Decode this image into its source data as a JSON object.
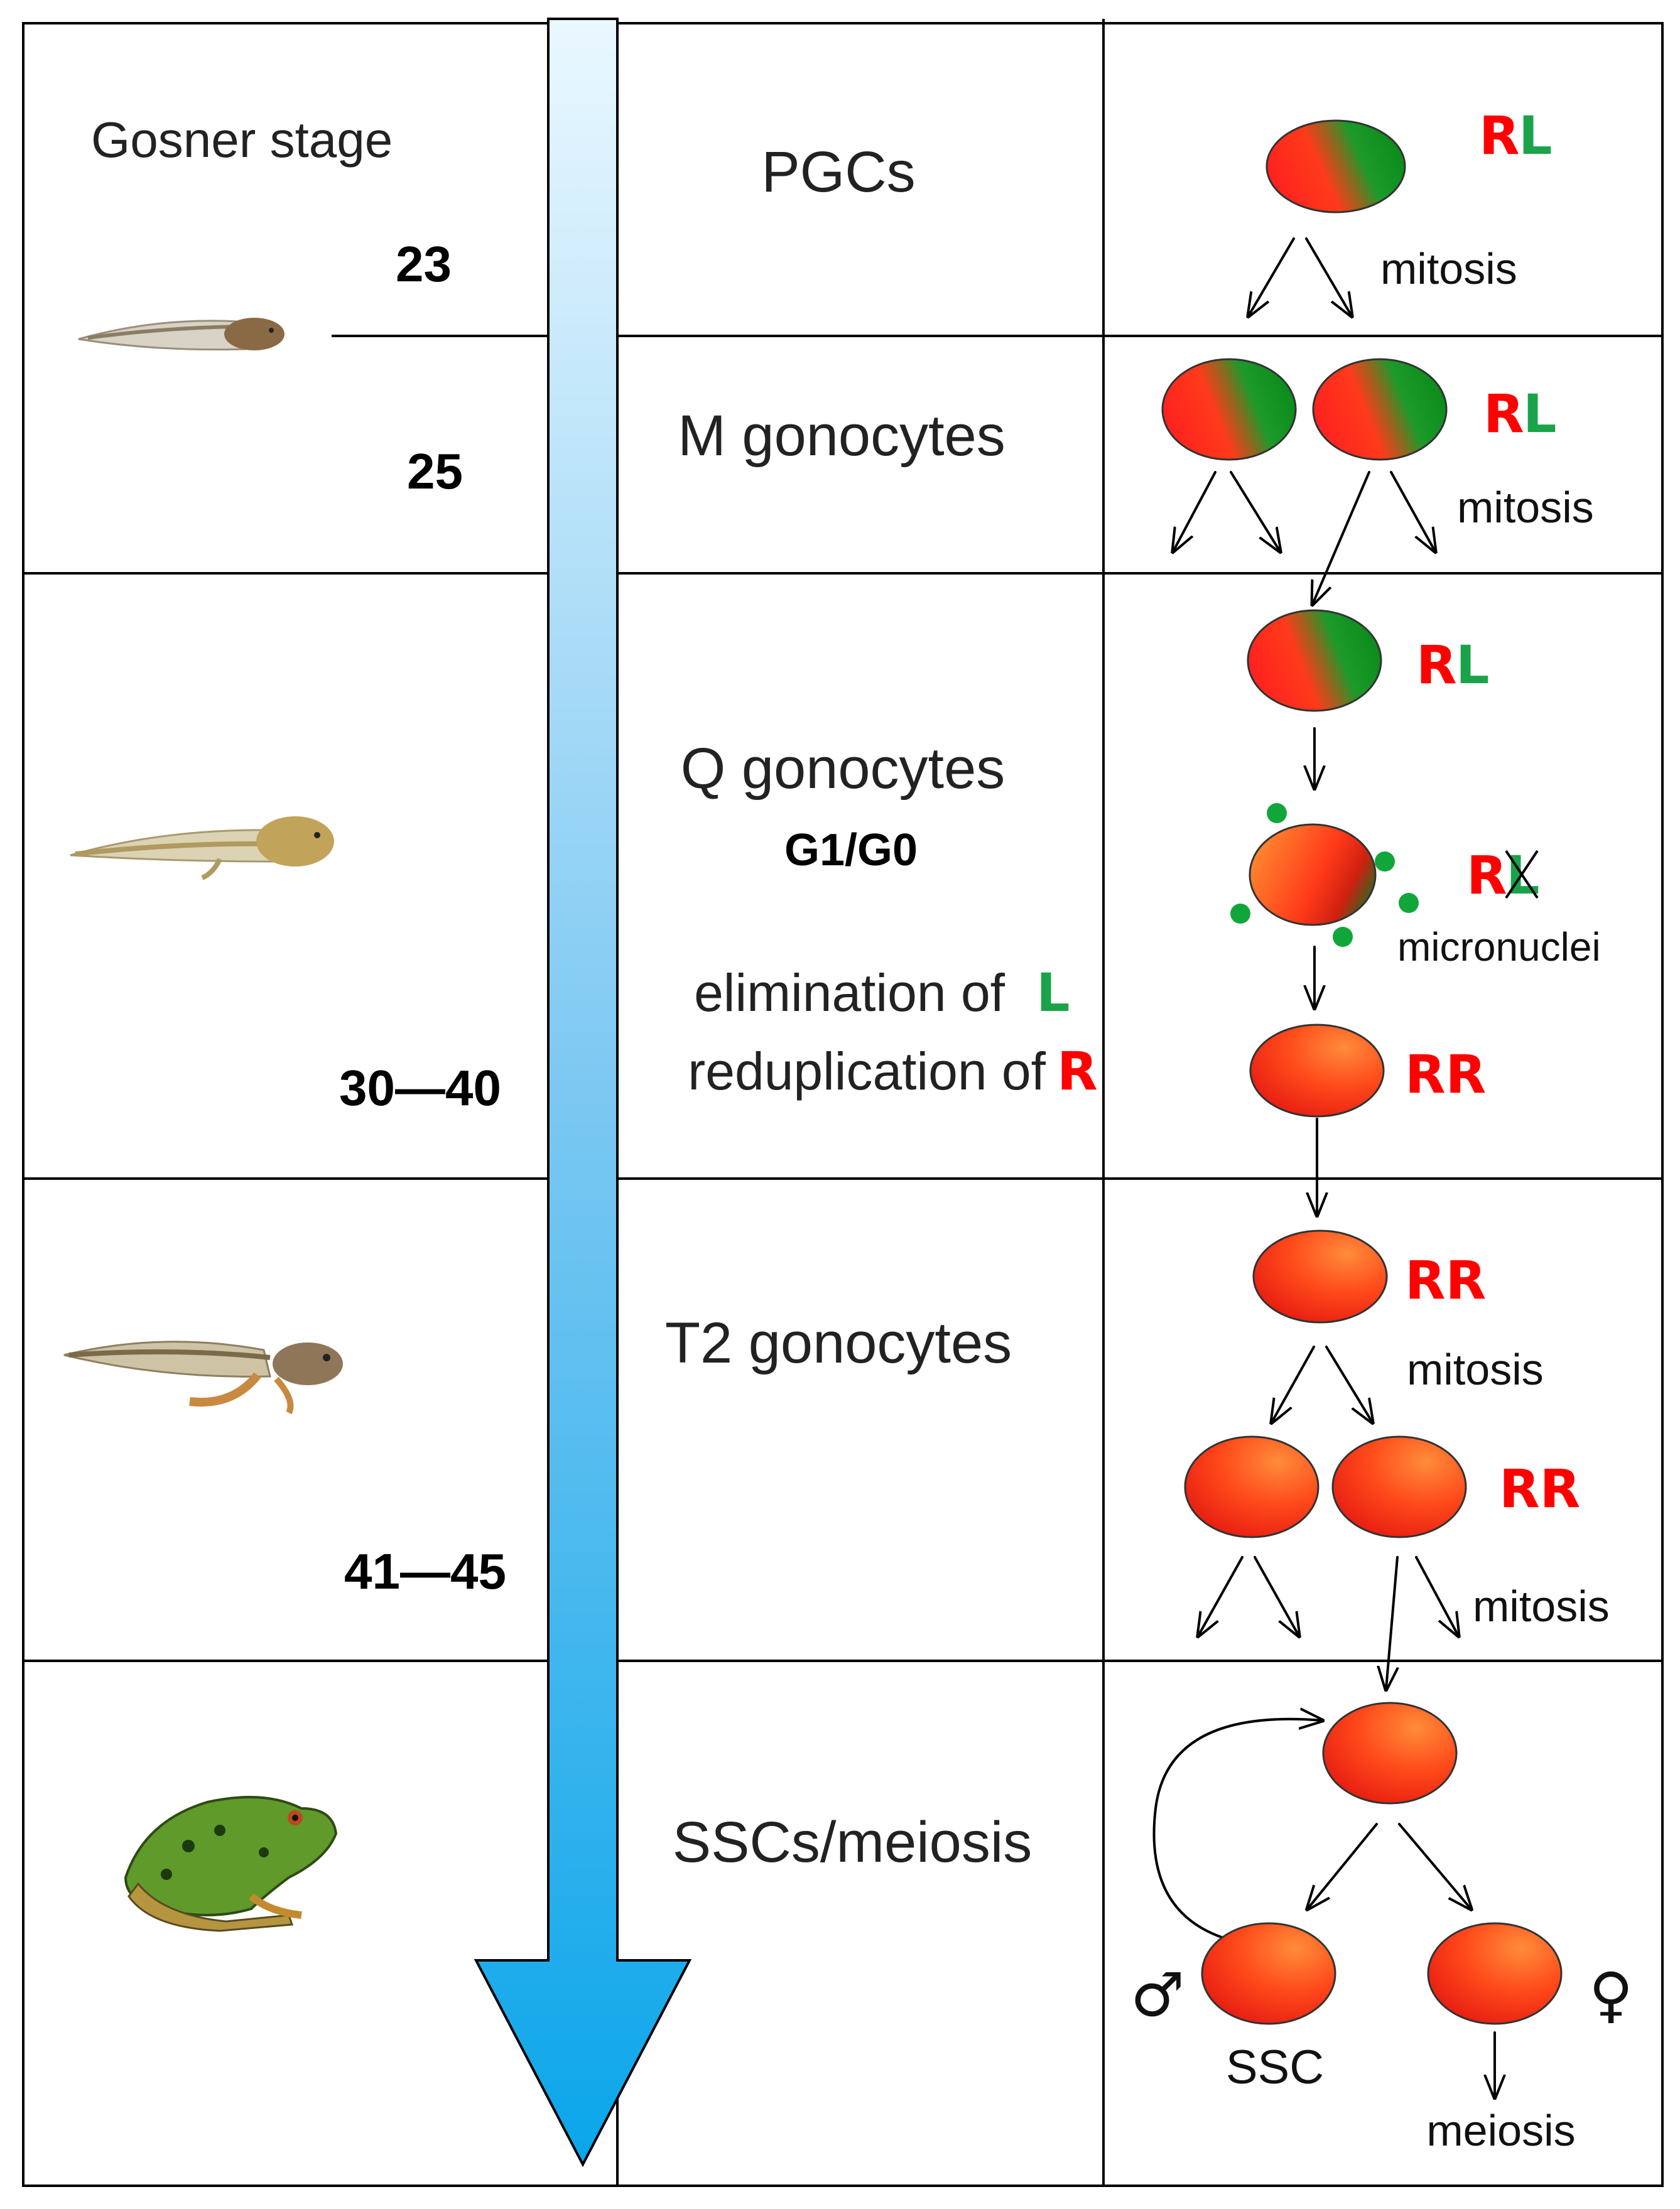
{
  "colors": {
    "R": "#ff0000",
    "L": "#1aa34a",
    "arrow_light": "#e8f7ff",
    "arrow_dark": "#00a9ee",
    "micronucleus": "#11a63a"
  },
  "header": {
    "title": "Gosner stage"
  },
  "stages": [
    "23",
    "25",
    "30—40",
    "41—45"
  ],
  "rows": [
    {
      "label": "PGCs"
    },
    {
      "label": "M gonocytes"
    },
    {
      "label": "Q gonocytes",
      "sublabel": "G1/G0"
    },
    {
      "label": "T2 gonocytes"
    },
    {
      "label": "SSCs/meiosis"
    }
  ],
  "events": {
    "elimination_prefix": "elimination of ",
    "elimination_letter": "L",
    "reduplication_prefix": "reduplication of ",
    "reduplication_letter": "R"
  },
  "genomes": {
    "R": "R",
    "L": "L",
    "RR": "RR"
  },
  "captions": {
    "mitosis": "mitosis",
    "micronuclei": "micronuclei",
    "ssc": "SSC",
    "meiosis": "meiosis",
    "male_symbol": "♂",
    "female_symbol": "♀"
  },
  "icons": [
    "tadpole-early-icon",
    "tadpole-mid-icon",
    "tadpole-late-icon",
    "frog-icon"
  ]
}
